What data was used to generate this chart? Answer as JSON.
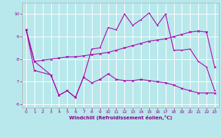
{
  "xlabel": "Windchill (Refroidissement éolien,°C)",
  "background_color": "#b8e8ec",
  "grid_color": "#ffffff",
  "line_color": "#aa00aa",
  "text_color": "#880088",
  "xlim": [
    -0.5,
    23.5
  ],
  "ylim": [
    5.85,
    10.5
  ],
  "yticks": [
    6,
    7,
    8,
    9,
    10
  ],
  "xticks": [
    0,
    1,
    2,
    3,
    4,
    5,
    6,
    7,
    8,
    9,
    10,
    11,
    12,
    13,
    14,
    15,
    16,
    17,
    18,
    19,
    20,
    21,
    22,
    23
  ],
  "curve1_x": [
    0,
    1,
    3,
    4,
    5,
    6,
    7,
    8,
    9,
    10,
    11,
    12,
    13,
    14,
    15,
    16,
    17,
    18,
    19,
    20,
    21,
    22,
    23
  ],
  "curve1_y": [
    9.3,
    7.5,
    7.3,
    6.4,
    6.6,
    6.3,
    7.2,
    6.95,
    7.1,
    7.35,
    7.1,
    7.05,
    7.05,
    7.1,
    7.05,
    7.0,
    6.95,
    6.85,
    6.7,
    6.6,
    6.5,
    6.5,
    6.5
  ],
  "curve2_x": [
    0,
    1,
    2,
    3,
    4,
    5,
    6,
    7,
    8,
    9,
    10,
    11,
    12,
    13,
    14,
    15,
    16,
    17,
    18,
    19,
    20,
    21,
    22,
    23
  ],
  "curve2_y": [
    9.3,
    7.9,
    7.95,
    8.0,
    8.05,
    8.1,
    8.1,
    8.15,
    8.2,
    8.25,
    8.3,
    8.4,
    8.5,
    8.6,
    8.7,
    8.8,
    8.85,
    8.9,
    9.0,
    9.1,
    9.2,
    9.25,
    9.2,
    7.65
  ],
  "curve3_x": [
    0,
    1,
    3,
    4,
    5,
    6,
    7,
    8,
    9,
    10,
    11,
    12,
    13,
    14,
    15,
    16,
    17,
    18,
    19,
    20,
    21,
    22,
    23
  ],
  "curve3_y": [
    9.3,
    7.9,
    7.3,
    6.4,
    6.6,
    6.3,
    7.2,
    8.45,
    8.5,
    9.4,
    9.3,
    10.0,
    9.5,
    9.75,
    10.05,
    9.5,
    10.0,
    8.4,
    8.4,
    8.45,
    7.9,
    7.65,
    6.6
  ]
}
